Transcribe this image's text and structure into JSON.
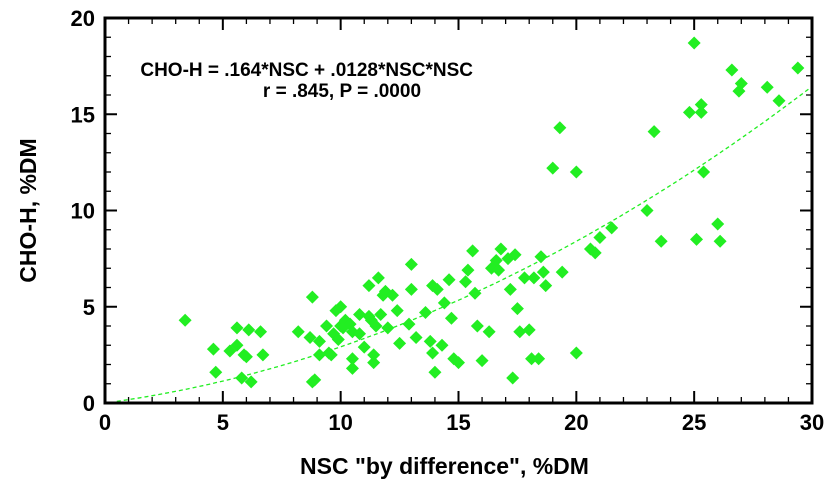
{
  "chart_data": {
    "type": "scatter",
    "xlabel": "NSC \"by difference\", %DM",
    "ylabel": "CHO-H, %DM",
    "xlim": [
      0,
      30
    ],
    "ylim": [
      0,
      20
    ],
    "x_ticks": [
      "0",
      "5",
      "10",
      "15",
      "20",
      "25",
      "30"
    ],
    "y_ticks": [
      "0",
      "5",
      "10",
      "15",
      "20"
    ],
    "annotations": [
      "CHO-H = .164*NSC + .0128*NSC*NSC",
      "r = .845, P = .0000"
    ],
    "marker_color": "#22ee22",
    "fit_line_color": "#22ee22",
    "fit": {
      "a": 0.164,
      "b": 0.0128
    },
    "points": [
      [
        3.4,
        4.3
      ],
      [
        4.6,
        2.8
      ],
      [
        4.7,
        1.6
      ],
      [
        5.3,
        2.7
      ],
      [
        5.6,
        3.0
      ],
      [
        5.6,
        3.9
      ],
      [
        5.8,
        1.3
      ],
      [
        5.9,
        2.5
      ],
      [
        6.0,
        2.4
      ],
      [
        6.1,
        3.8
      ],
      [
        6.2,
        1.1
      ],
      [
        6.6,
        3.7
      ],
      [
        6.7,
        2.5
      ],
      [
        8.2,
        3.7
      ],
      [
        8.7,
        3.4
      ],
      [
        8.8,
        5.5
      ],
      [
        8.8,
        1.1
      ],
      [
        8.9,
        1.2
      ],
      [
        9.1,
        3.2
      ],
      [
        9.1,
        2.5
      ],
      [
        9.4,
        4.0
      ],
      [
        9.5,
        2.6
      ],
      [
        9.6,
        2.5
      ],
      [
        9.7,
        3.6
      ],
      [
        9.8,
        4.8
      ],
      [
        9.9,
        3.3
      ],
      [
        10.0,
        5.0
      ],
      [
        10.0,
        4.0
      ],
      [
        10.1,
        3.9
      ],
      [
        10.2,
        4.3
      ],
      [
        10.4,
        4.1
      ],
      [
        10.5,
        3.7
      ],
      [
        10.5,
        2.3
      ],
      [
        10.5,
        1.8
      ],
      [
        10.8,
        3.6
      ],
      [
        10.8,
        4.6
      ],
      [
        11.0,
        2.9
      ],
      [
        11.2,
        4.5
      ],
      [
        11.2,
        6.1
      ],
      [
        11.3,
        4.3
      ],
      [
        11.4,
        2.5
      ],
      [
        11.4,
        2.1
      ],
      [
        11.5,
        4.0
      ],
      [
        11.6,
        6.5
      ],
      [
        11.7,
        4.6
      ],
      [
        11.8,
        5.6
      ],
      [
        11.9,
        5.8
      ],
      [
        12.0,
        3.9
      ],
      [
        12.2,
        5.6
      ],
      [
        12.4,
        4.8
      ],
      [
        12.5,
        3.1
      ],
      [
        12.9,
        4.1
      ],
      [
        13.0,
        5.9
      ],
      [
        13.0,
        7.2
      ],
      [
        13.2,
        3.4
      ],
      [
        13.6,
        4.7
      ],
      [
        13.8,
        3.2
      ],
      [
        13.9,
        2.6
      ],
      [
        13.9,
        6.1
      ],
      [
        14.0,
        1.6
      ],
      [
        14.1,
        5.9
      ],
      [
        14.3,
        3.0
      ],
      [
        14.4,
        5.2
      ],
      [
        14.6,
        6.4
      ],
      [
        14.7,
        4.4
      ],
      [
        14.8,
        2.3
      ],
      [
        15.0,
        2.1
      ],
      [
        15.3,
        6.3
      ],
      [
        15.4,
        6.9
      ],
      [
        15.6,
        7.9
      ],
      [
        15.7,
        5.7
      ],
      [
        15.8,
        4.0
      ],
      [
        16.0,
        2.2
      ],
      [
        16.3,
        3.7
      ],
      [
        16.4,
        7.0
      ],
      [
        16.6,
        7.4
      ],
      [
        16.7,
        6.9
      ],
      [
        16.8,
        8.0
      ],
      [
        17.1,
        7.5
      ],
      [
        17.2,
        5.9
      ],
      [
        17.3,
        1.3
      ],
      [
        17.4,
        7.7
      ],
      [
        17.5,
        4.9
      ],
      [
        17.6,
        3.7
      ],
      [
        17.8,
        6.5
      ],
      [
        18.0,
        3.8
      ],
      [
        18.1,
        2.3
      ],
      [
        18.2,
        6.5
      ],
      [
        18.4,
        2.3
      ],
      [
        18.5,
        7.6
      ],
      [
        18.6,
        6.8
      ],
      [
        18.7,
        6.1
      ],
      [
        19.0,
        12.2
      ],
      [
        19.4,
        6.8
      ],
      [
        19.3,
        14.3
      ],
      [
        20.0,
        12.0
      ],
      [
        20.0,
        2.6
      ],
      [
        20.6,
        8.0
      ],
      [
        20.8,
        7.8
      ],
      [
        21.0,
        8.6
      ],
      [
        21.5,
        9.1
      ],
      [
        23.0,
        10.0
      ],
      [
        23.3,
        14.1
      ],
      [
        23.6,
        8.4
      ],
      [
        24.8,
        15.1
      ],
      [
        25.0,
        18.7
      ],
      [
        25.1,
        8.5
      ],
      [
        25.3,
        15.5
      ],
      [
        25.3,
        15.1
      ],
      [
        25.4,
        12.0
      ],
      [
        26.0,
        9.3
      ],
      [
        26.1,
        8.4
      ],
      [
        26.6,
        17.3
      ],
      [
        26.9,
        16.2
      ],
      [
        27.0,
        16.6
      ],
      [
        28.1,
        16.4
      ],
      [
        28.6,
        15.7
      ],
      [
        29.4,
        17.4
      ]
    ]
  }
}
